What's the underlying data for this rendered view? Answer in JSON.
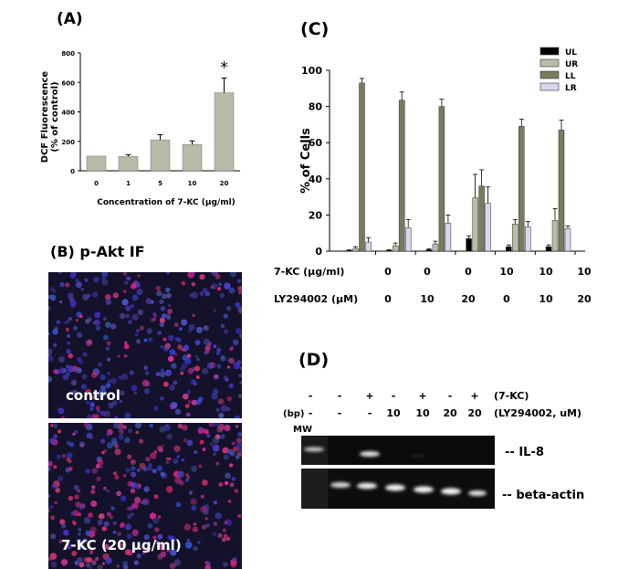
{
  "panelA": {
    "label": "(A)",
    "ylabel_line1": "DCF Fluorescence",
    "ylabel_line2": "(% of control)",
    "xlabel": "Concentration of 7-KC (μg/ml)",
    "significance_mark": "*"
  },
  "panelB": {
    "label": "(B) p-Akt IF",
    "image1_label": "control",
    "image2_label": "7-KC (20 μg/ml)"
  },
  "panelC": {
    "label": "(C)",
    "ylabel": "% of Cells",
    "row1_label": "7-KC (μg/ml)",
    "row1_values": [
      "0",
      "0",
      "0",
      "10",
      "10",
      "10"
    ],
    "row2_label": "LY294002 (μM)",
    "row2_values": [
      "0",
      "10",
      "20",
      "0",
      "10",
      "20"
    ]
  },
  "panelD": {
    "label": "(D)",
    "row1_values": [
      "-",
      "+",
      "-",
      "+",
      "-",
      "+"
    ],
    "row1_label": "(7-KC)",
    "row2_values": [
      "-",
      "-",
      "10",
      "10",
      "20",
      "20"
    ],
    "row2_label": "(LY294002, uM)",
    "bp_label": "(bp)",
    "mw_label": "MW",
    "first_lane_row1": "-",
    "band1_label": "-- IL-8",
    "band2_label": "-- beta-actin"
  },
  "chart_data": [
    {
      "type": "bar",
      "categories": [
        "0",
        "1",
        "5",
        "10",
        "20"
      ],
      "values": [
        100,
        97,
        210,
        178,
        530
      ],
      "errors": [
        0,
        12,
        35,
        25,
        100
      ],
      "color": "#b8bba8",
      "ylabel": "DCF Fluorescence (% of control)",
      "xlabel": "Concentration of 7-KC (μg/ml)",
      "ylim": [
        0,
        800
      ],
      "yticks": [
        0,
        200,
        400,
        600,
        800
      ],
      "annotation": "*",
      "grid": false
    },
    {
      "type": "bar",
      "categories": [
        "1",
        "2",
        "3",
        "4",
        "5",
        "6"
      ],
      "ylabel": "% of Cells",
      "ylim": [
        0,
        100
      ],
      "yticks": [
        0,
        20,
        40,
        60,
        80,
        100
      ],
      "legend_position": "top-right",
      "grid": false,
      "series": [
        {
          "name": "UL",
          "color": "#000000",
          "values": [
            0.5,
            0.5,
            0.8,
            7,
            2.5,
            2.5
          ],
          "errors": [
            0.2,
            0.3,
            0.5,
            1.5,
            1.0,
            1.0
          ]
        },
        {
          "name": "UR",
          "color": "#b8bba8",
          "values": [
            1.5,
            3,
            4,
            29.5,
            15,
            17
          ],
          "errors": [
            1.0,
            1.5,
            1.5,
            13,
            2.5,
            6.5
          ]
        },
        {
          "name": "LL",
          "color": "#7a7a5e",
          "values": [
            93,
            83.5,
            80,
            36,
            69,
            67
          ],
          "errors": [
            2.5,
            4.5,
            4.0,
            9.0,
            4.0,
            5.5
          ]
        },
        {
          "name": "LR",
          "color": "#d6d6ee",
          "values": [
            5,
            13,
            15.5,
            26.5,
            13.5,
            12.5
          ],
          "errors": [
            2.5,
            4.5,
            4.5,
            9.0,
            3.0,
            1.5
          ]
        }
      ]
    }
  ]
}
